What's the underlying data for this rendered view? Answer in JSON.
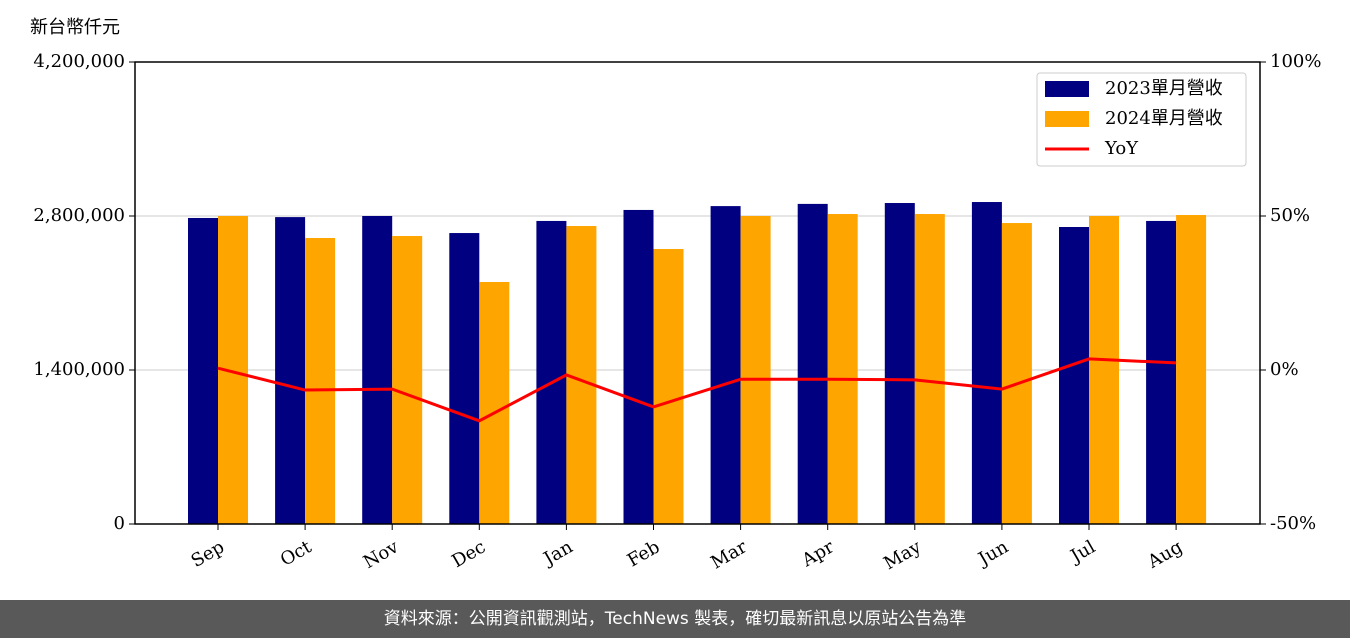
{
  "chart_data": {
    "type": "bar_line",
    "y_axis_label": "新台幣仟元",
    "categories": [
      "Sep",
      "Oct",
      "Nov",
      "Dec",
      "Jan",
      "Feb",
      "Mar",
      "Apr",
      "May",
      "Jun",
      "Jul",
      "Aug"
    ],
    "series": [
      {
        "name": "2023單月營收",
        "color": "#000080",
        "type": "bar",
        "values": [
          2782000,
          2790000,
          2800000,
          2645000,
          2755000,
          2855000,
          2890000,
          2910000,
          2918000,
          2927000,
          2700000,
          2755000
        ]
      },
      {
        "name": "2024單月營收",
        "color": "#ffa500",
        "type": "bar",
        "values": [
          2800000,
          2600000,
          2618000,
          2200000,
          2709000,
          2500000,
          2800000,
          2818000,
          2818000,
          2736000,
          2800000,
          2809000
        ]
      },
      {
        "name": "YoY",
        "color": "#ff0000",
        "type": "line",
        "axis": "y2",
        "values": [
          0.6,
          -6.5,
          -6.2,
          -16.5,
          -1.6,
          -12,
          -3,
          -3,
          -3.2,
          -6.2,
          3.6,
          2.3
        ]
      }
    ],
    "ylim": [
      0,
      4200000
    ],
    "yticks": [
      0,
      {
        "value": 1400000,
        "label": "1,400,000"
      },
      {
        "value": 2800000,
        "label": "2,800,000"
      },
      {
        "value": 4200000,
        "label": "4,200,000"
      }
    ],
    "y2lim": [
      -50,
      100
    ],
    "y2ticks": [
      {
        "value": -50,
        "label": "-50%"
      },
      {
        "value": 0,
        "label": "0%"
      },
      {
        "value": 50,
        "label": "50%"
      },
      {
        "value": 100,
        "label": "100%"
      }
    ],
    "grid": true,
    "legend": "upper right"
  },
  "footer": "資料來源：公開資訊觀測站，TechNews 製表，確切最新訊息以原站公告為準"
}
